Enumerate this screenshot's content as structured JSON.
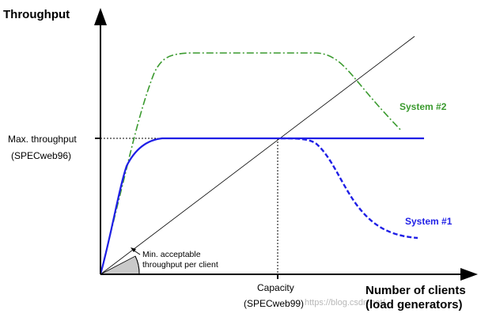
{
  "y_axis": {
    "title": "Throughput"
  },
  "x_axis": {
    "title_line1": "Number of clients",
    "title_line2": "(load generators)"
  },
  "max_throughput": {
    "line1": "Max. throughput",
    "line2": "(SPECweb96)"
  },
  "capacity": {
    "line1": "Capacity",
    "line2": "(SPECweb99)"
  },
  "min_acceptable": {
    "line1": "Min. acceptable",
    "line2": "throughput per client"
  },
  "system2": {
    "label": "System #2",
    "color": "#3a9a2e"
  },
  "system1": {
    "label": "System #1",
    "color": "#1f1fe6"
  },
  "watermark": {
    "text": "https://blog.csdn.net/..."
  }
}
